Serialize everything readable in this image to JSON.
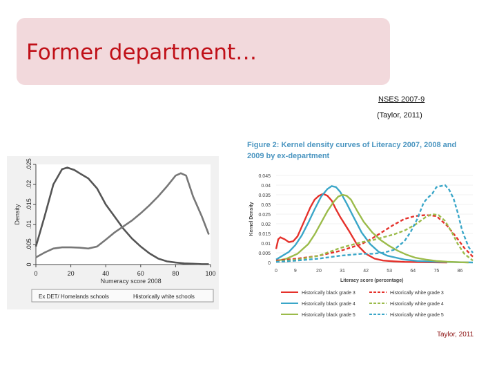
{
  "slide": {
    "title": "Former department…",
    "source_line1": "NSES 2007-9",
    "source_line2": "(Taylor, 2011)",
    "credit": "Taylor, 2011"
  },
  "chart_data": [
    {
      "type": "line",
      "xlabel": "Numeracy score 2008",
      "ylabel": "Density",
      "xlim": [
        0,
        100
      ],
      "ylim": [
        0,
        0.025
      ],
      "x_ticks": [
        "0",
        "20",
        "40",
        "60",
        "80",
        "100"
      ],
      "y_ticks": [
        "0",
        ".005",
        ".01",
        ".015",
        ".02",
        ".025"
      ],
      "legend_position": "bottom",
      "colors": [
        "#555555",
        "#777777"
      ],
      "series": [
        {
          "name": "Ex DET/ Homelands schools",
          "x": [
            0,
            5,
            10,
            15,
            18,
            22,
            25,
            30,
            35,
            40,
            45,
            50,
            55,
            60,
            65,
            70,
            75,
            80,
            85,
            90,
            95,
            99
          ],
          "y": [
            0.0045,
            0.012,
            0.02,
            0.0238,
            0.0242,
            0.0236,
            0.0228,
            0.0215,
            0.019,
            0.015,
            0.012,
            0.009,
            0.0065,
            0.0045,
            0.0028,
            0.0015,
            0.0008,
            0.0005,
            0.0003,
            0.0002,
            0.0001,
            0.0001
          ]
        },
        {
          "name": "Historically white schools",
          "x": [
            0,
            5,
            10,
            15,
            20,
            25,
            30,
            35,
            40,
            45,
            50,
            55,
            60,
            65,
            70,
            75,
            80,
            83,
            86,
            90,
            95,
            99
          ],
          "y": [
            0.0018,
            0.003,
            0.004,
            0.0043,
            0.0043,
            0.0042,
            0.004,
            0.0045,
            0.0062,
            0.008,
            0.0095,
            0.011,
            0.0128,
            0.0148,
            0.017,
            0.0195,
            0.0222,
            0.0228,
            0.0222,
            0.017,
            0.012,
            0.0075
          ]
        }
      ]
    },
    {
      "type": "line",
      "title": "Figure 2: Kernel density curves of Literacy 2007, 2008 and 2009 by ex-department",
      "xlabel": "Literacy score (percentage)",
      "ylabel": "Kernel Density",
      "xlim": [
        0,
        92
      ],
      "ylim": [
        0,
        0.045
      ],
      "x_ticks": [
        "0",
        "9",
        "20",
        "31",
        "42",
        "53",
        "64",
        "75",
        "86"
      ],
      "y_ticks": [
        "0",
        "0.005",
        "0.01",
        "0.015",
        "0.02",
        "0.025",
        "0.03",
        "0.035",
        "0.04",
        "0.045"
      ],
      "legend_position": "bottom",
      "series": [
        {
          "name": "Historically black grade 3",
          "color": "#e5312b",
          "dash": false,
          "x": [
            0,
            1,
            2,
            4,
            6,
            8,
            10,
            12,
            14,
            16,
            18,
            20,
            22,
            24,
            26,
            28,
            30,
            34,
            38,
            42,
            46,
            50,
            55,
            60,
            70,
            80
          ],
          "y": [
            0.007,
            0.012,
            0.013,
            0.012,
            0.0105,
            0.011,
            0.0135,
            0.0185,
            0.0235,
            0.0285,
            0.0325,
            0.0345,
            0.0355,
            0.0345,
            0.032,
            0.0275,
            0.0235,
            0.0165,
            0.009,
            0.0045,
            0.002,
            0.001,
            0.0006,
            0.0003,
            0.0001,
            0
          ]
        },
        {
          "name": "Historically black grade 4",
          "color": "#3aa6c8",
          "dash": false,
          "x": [
            0,
            3,
            6,
            9,
            12,
            15,
            18,
            21,
            24,
            26,
            28,
            30,
            33,
            36,
            40,
            44,
            48,
            52,
            56,
            60,
            66,
            74,
            82,
            92
          ],
          "y": [
            0.0015,
            0.0035,
            0.0055,
            0.009,
            0.014,
            0.0205,
            0.0275,
            0.034,
            0.038,
            0.0395,
            0.039,
            0.0365,
            0.0305,
            0.024,
            0.0155,
            0.0095,
            0.0055,
            0.0035,
            0.0025,
            0.0015,
            0.0008,
            0.0004,
            0.0002,
            0
          ]
        },
        {
          "name": "Historically black grade 5",
          "color": "#9bbb4a",
          "dash": false,
          "x": [
            0,
            5,
            10,
            15,
            18,
            21,
            24,
            27,
            29,
            31,
            33,
            35,
            38,
            41,
            45,
            49,
            53,
            57,
            61,
            65,
            70,
            75,
            80,
            86,
            90
          ],
          "y": [
            0.0008,
            0.002,
            0.0045,
            0.0095,
            0.0145,
            0.0205,
            0.0265,
            0.0315,
            0.034,
            0.035,
            0.0345,
            0.0325,
            0.0265,
            0.021,
            0.0155,
            0.0115,
            0.0085,
            0.006,
            0.004,
            0.0025,
            0.0015,
            0.0008,
            0.0004,
            0.0001,
            0
          ]
        },
        {
          "name": "Historically white grade 3",
          "color": "#e5312b",
          "dash": true,
          "x": [
            0,
            10,
            20,
            30,
            40,
            45,
            50,
            55,
            60,
            65,
            70,
            75,
            78,
            80,
            84,
            88,
            92
          ],
          "y": [
            0.001,
            0.002,
            0.0035,
            0.006,
            0.0095,
            0.0125,
            0.016,
            0.0195,
            0.0225,
            0.024,
            0.0245,
            0.024,
            0.021,
            0.019,
            0.0135,
            0.0075,
            0.003
          ]
        },
        {
          "name": "Historically white grade 4",
          "color": "#9bbb4a",
          "dash": true,
          "x": [
            0,
            10,
            20,
            30,
            40,
            45,
            50,
            55,
            60,
            65,
            70,
            73,
            76,
            79,
            82,
            85,
            88,
            92
          ],
          "y": [
            0.0005,
            0.0015,
            0.0035,
            0.0075,
            0.0105,
            0.0115,
            0.013,
            0.0145,
            0.0165,
            0.0195,
            0.0235,
            0.025,
            0.0245,
            0.0215,
            0.016,
            0.0095,
            0.0045,
            0.001
          ]
        },
        {
          "name": "Historically white grade 5",
          "color": "#3aa6c8",
          "dash": true,
          "x": [
            0,
            10,
            20,
            30,
            40,
            45,
            50,
            55,
            60,
            63,
            66,
            69,
            71,
            73,
            75,
            77,
            79,
            81,
            83,
            85,
            87,
            90,
            92
          ],
          "y": [
            0.0003,
            0.001,
            0.002,
            0.0035,
            0.0045,
            0.0045,
            0.005,
            0.0065,
            0.011,
            0.016,
            0.0225,
            0.031,
            0.0335,
            0.0355,
            0.039,
            0.0395,
            0.04,
            0.0375,
            0.033,
            0.0255,
            0.0165,
            0.008,
            0.005
          ]
        }
      ]
    }
  ]
}
